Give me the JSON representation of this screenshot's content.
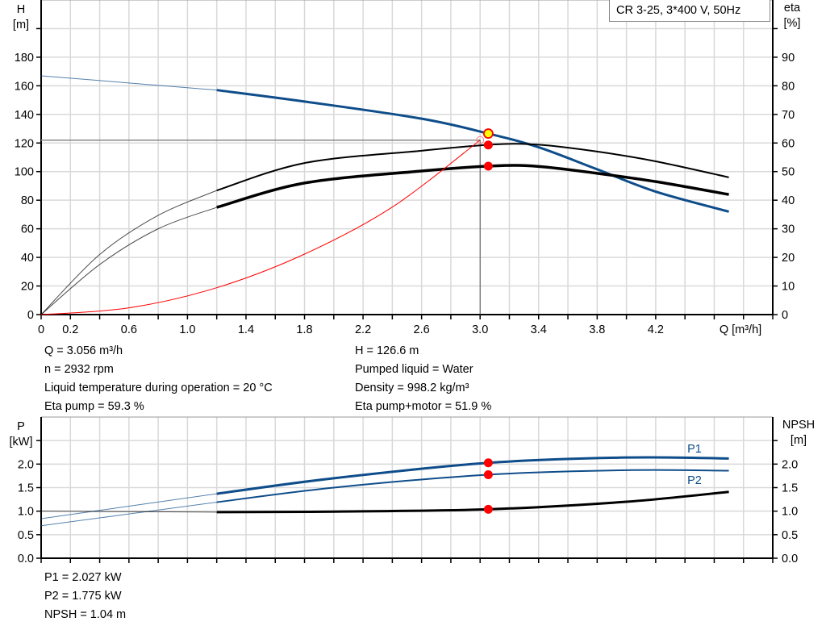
{
  "legend_box": "CR 3-25, 3*400 V, 50Hz",
  "colors": {
    "head": "#0e4d8a",
    "power": "#0e4d8a",
    "eta": "#000000",
    "npsh": "#000000",
    "system": "#ff0000",
    "marker": "#ff0000",
    "op_marker": "#ffff00",
    "grid": "#d9d9d9"
  },
  "info_top_left": [
    "Q = 3.056 m³/h",
    "n = 2932 rpm",
    "Liquid temperature during operation = 20 °C",
    "Eta pump = 59.3 %"
  ],
  "info_top_right": [
    "H = 126.6 m",
    "Pumped liquid = Water",
    "Density = 998.2 kg/m³",
    "Eta pump+motor = 51.9 %"
  ],
  "info_bottom": [
    "P1 = 2.027 kW",
    "P2 = 1.775 kW",
    "NPSH = 1.04 m"
  ],
  "chart_data": [
    {
      "type": "line",
      "xlabel": "Q [m³/h]",
      "ylabel_left": [
        "H",
        "[m]"
      ],
      "ylabel_right": [
        "eta",
        "[%]"
      ],
      "xlim": [
        0,
        5.0
      ],
      "ylim_left": [
        0,
        220
      ],
      "ylim_right": [
        0,
        110
      ],
      "x_ticks": [
        0,
        0.2,
        0.4,
        0.6,
        0.8,
        1.0,
        1.2,
        1.4,
        1.6,
        1.8,
        2.0,
        2.2,
        2.4,
        2.6,
        2.8,
        3.0,
        3.2,
        3.4,
        3.6,
        3.8,
        4.0,
        4.2,
        4.4,
        4.6,
        4.8
      ],
      "x_tick_labels": [
        "0",
        "0.2",
        "0.6",
        "1.0",
        "1.4",
        "1.8",
        "2.2",
        "2.6",
        "3.0",
        "3.4",
        "3.8",
        "4.2"
      ],
      "y_left_ticks": [
        0,
        20,
        40,
        60,
        80,
        100,
        120,
        140,
        160,
        180,
        200
      ],
      "y_left_tick_labels": [
        "0",
        "20",
        "40",
        "60",
        "80",
        "100",
        "120",
        "140",
        "160",
        "180"
      ],
      "y_right_ticks": [
        0,
        10,
        20,
        30,
        40,
        50,
        60,
        70,
        80,
        90,
        100
      ],
      "y_right_tick_labels": [
        "0",
        "10",
        "20",
        "30",
        "40",
        "50",
        "60",
        "70",
        "80",
        "90"
      ],
      "grid": true,
      "series": [
        {
          "key": "head",
          "axis": "left",
          "thick_from": 1.2,
          "width": 3,
          "color": "#0e4d8a",
          "points": [
            [
              0,
              167
            ],
            [
              0.6,
              162
            ],
            [
              1.2,
              157
            ],
            [
              1.8,
              149
            ],
            [
              2.6,
              137
            ],
            [
              3.056,
              126.6
            ],
            [
              3.4,
              117
            ],
            [
              3.8,
              101.6
            ],
            [
              4.2,
              86
            ],
            [
              4.7,
              72
            ]
          ]
        },
        {
          "key": "eta-pump",
          "axis": "right",
          "thick_from": 1.2,
          "width": 2,
          "color": "#000000",
          "points": [
            [
              0,
              0
            ],
            [
              0.4,
              21
            ],
            [
              0.8,
              34.7
            ],
            [
              1.2,
              43.4
            ],
            [
              1.8,
              53
            ],
            [
              2.6,
              57.3
            ],
            [
              3.1,
              59.5
            ],
            [
              3.4,
              59.4
            ],
            [
              3.8,
              57
            ],
            [
              4.2,
              53.6
            ],
            [
              4.7,
              48
            ]
          ]
        },
        {
          "key": "eta-pump-motor",
          "axis": "right",
          "thick_from": 1.2,
          "width": 3.5,
          "color": "#000000",
          "points": [
            [
              0,
              0
            ],
            [
              0.4,
              17.5
            ],
            [
              0.8,
              30
            ],
            [
              1.2,
              37.5
            ],
            [
              1.8,
              46
            ],
            [
              2.6,
              50.2
            ],
            [
              3.1,
              52
            ],
            [
              3.4,
              51.8
            ],
            [
              3.8,
              49.4
            ],
            [
              4.2,
              46.5
            ],
            [
              4.7,
              42
            ]
          ]
        },
        {
          "key": "system",
          "axis": "left",
          "thick_from": null,
          "width": 1,
          "color": "#ff0000",
          "points": [
            [
              0,
              0
            ],
            [
              0.6,
              4.7
            ],
            [
              1.2,
              18.8
            ],
            [
              1.8,
              42.3
            ],
            [
              2.4,
              75.2
            ],
            [
              3.0,
              122
            ]
          ]
        }
      ],
      "operating_point": {
        "q": 3.056,
        "h": 126.6,
        "eta_pump": 59.3,
        "eta_pump_motor": 51.9,
        "system_h": 122
      }
    },
    {
      "type": "line",
      "ylabel_left": [
        "P",
        "[kW]"
      ],
      "ylabel_right": [
        "NPSH",
        "[m]"
      ],
      "xlim": [
        0,
        5.0
      ],
      "ylim": [
        0,
        3.0
      ],
      "y_ticks": [
        0,
        0.5,
        1.0,
        1.5,
        2.0,
        2.5
      ],
      "y_tick_labels": [
        "0.0",
        "0.5",
        "1.0",
        "1.5",
        "2.0"
      ],
      "grid": true,
      "series": [
        {
          "key": "p1",
          "name": "P1",
          "thick_from": 1.2,
          "width": 3,
          "color": "#0e4d8a",
          "points": [
            [
              0,
              0.84
            ],
            [
              1.2,
              1.37
            ],
            [
              2.0,
              1.7
            ],
            [
              3.056,
              2.027
            ],
            [
              4.0,
              2.14
            ],
            [
              4.7,
              2.12
            ]
          ]
        },
        {
          "key": "p2",
          "name": "P2",
          "thick_from": 1.2,
          "width": 2,
          "color": "#0e4d8a",
          "points": [
            [
              0,
              0.69
            ],
            [
              1.2,
              1.19
            ],
            [
              2.0,
              1.5
            ],
            [
              3.056,
              1.775
            ],
            [
              4.0,
              1.87
            ],
            [
              4.7,
              1.86
            ]
          ]
        },
        {
          "key": "npsh",
          "thick_from": 1.2,
          "width": 3,
          "color": "#000000",
          "points": [
            [
              0,
              1.0
            ],
            [
              1.2,
              0.98
            ],
            [
              2.0,
              0.99
            ],
            [
              3.056,
              1.04
            ],
            [
              4.0,
              1.2
            ],
            [
              4.7,
              1.41
            ]
          ]
        }
      ],
      "operating_point": {
        "q": 3.056,
        "p1": 2.027,
        "p2": 1.775,
        "npsh": 1.04
      }
    }
  ]
}
